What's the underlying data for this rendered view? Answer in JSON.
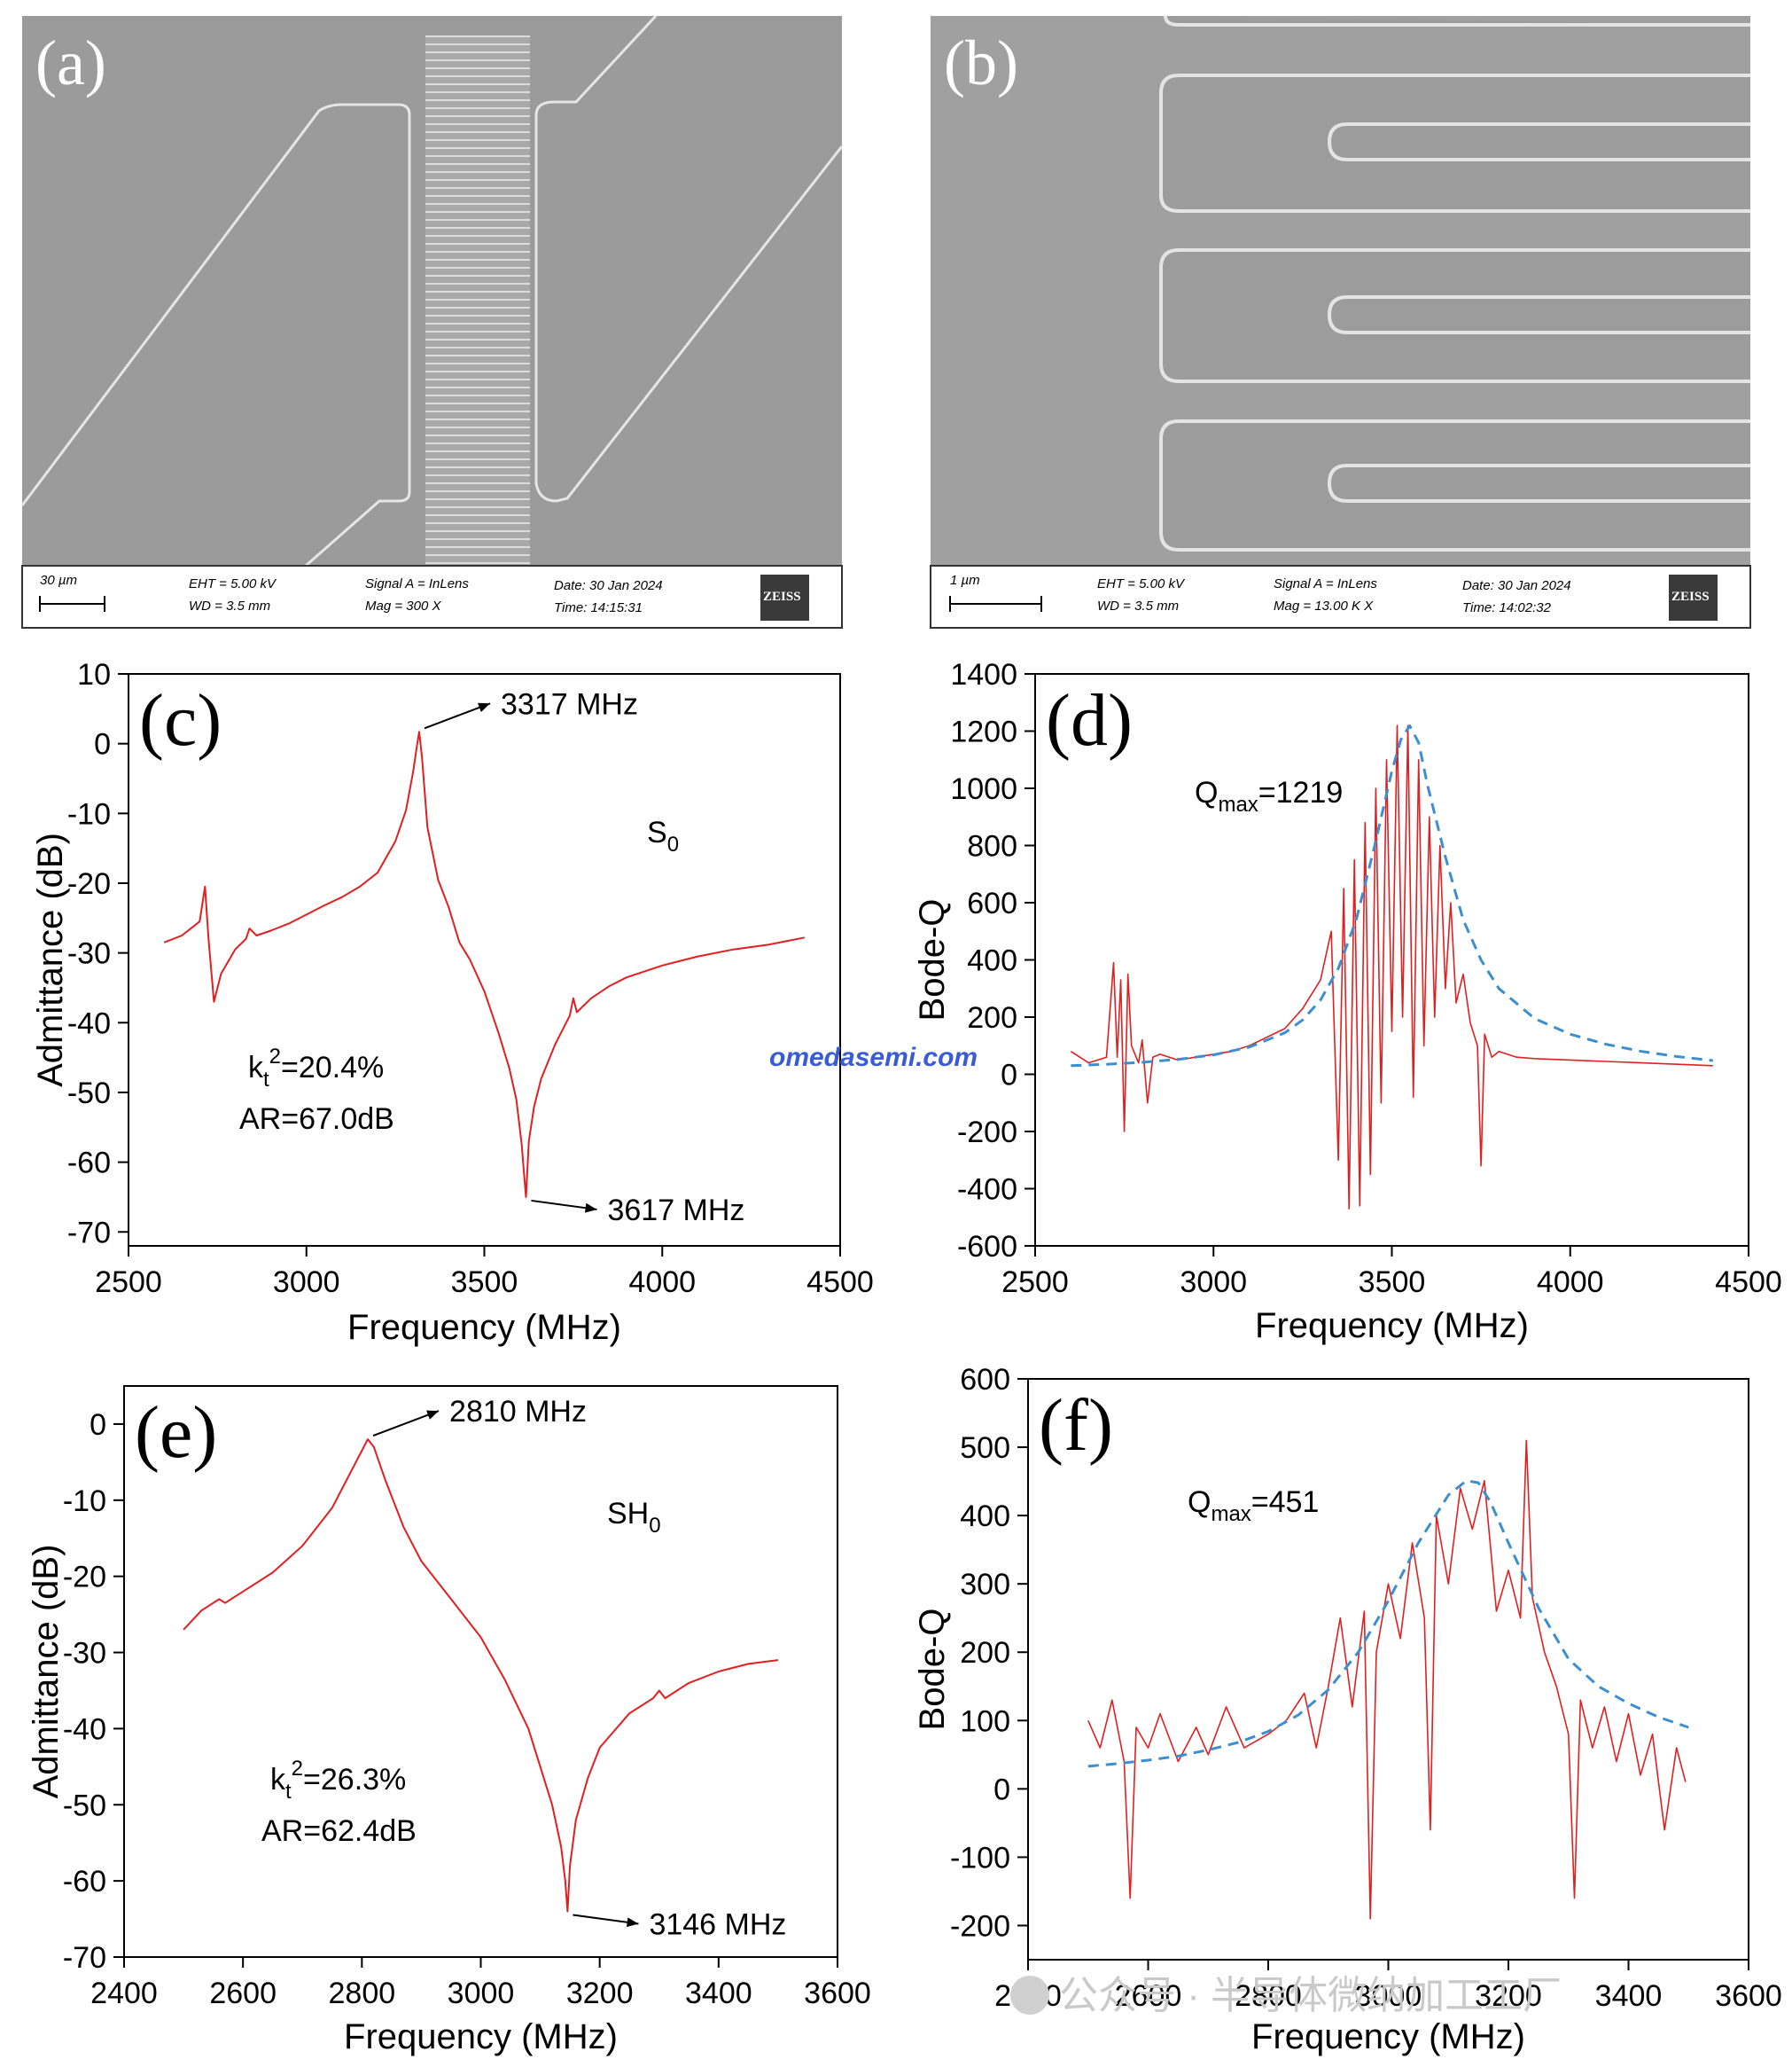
{
  "sem_panels": [
    {
      "label": "(a)",
      "info": {
        "scale": "30 µm",
        "eht": "EHT =  5.00 kV",
        "wd": "WD =  3.5 mm",
        "signal": "Signal A = InLens",
        "mag": "Mag =    300 X",
        "date": "Date: 30 Jan 2024",
        "time": "Time: 14:15:31",
        "brand": "ZEISS"
      }
    },
    {
      "label": "(b)",
      "info": {
        "scale": "1 µm",
        "eht": "EHT =  5.00 kV",
        "wd": "WD =  3.5 mm",
        "signal": "Signal A = InLens",
        "mag": "Mag =    13.00 K X",
        "date": "Date: 30 Jan 2024",
        "time": "Time: 14:02:32",
        "brand": "ZEISS"
      }
    }
  ],
  "chart_data": [
    {
      "id": "c",
      "panel_label": "(c)",
      "type": "line",
      "xlabel": "Frequency (MHz)",
      "ylabel": "Admittance (dB)",
      "xlim": [
        2500,
        4500
      ],
      "ylim": [
        -72,
        10
      ],
      "xticks": [
        2500,
        3000,
        3500,
        4000,
        4500
      ],
      "yticks": [
        10,
        0,
        -10,
        -20,
        -30,
        -40,
        -50,
        -60,
        -70
      ],
      "line_color": "#e02020",
      "x": [
        2600,
        2650,
        2700,
        2715,
        2725,
        2740,
        2760,
        2800,
        2830,
        2840,
        2860,
        2900,
        2950,
        3000,
        3050,
        3100,
        3150,
        3200,
        3250,
        3280,
        3300,
        3310,
        3317,
        3325,
        3340,
        3370,
        3400,
        3430,
        3460,
        3500,
        3540,
        3570,
        3590,
        3605,
        3612,
        3617,
        3625,
        3640,
        3660,
        3700,
        3740,
        3750,
        3760,
        3800,
        3850,
        3900,
        4000,
        4100,
        4200,
        4300,
        4400
      ],
      "y": [
        -28.5,
        -27.5,
        -25.5,
        -20.5,
        -28,
        -37,
        -33,
        -29.5,
        -28,
        -26.5,
        -27.5,
        -26.8,
        -25.8,
        -24.5,
        -23.2,
        -22.0,
        -20.5,
        -18.5,
        -14.0,
        -9.5,
        -4.0,
        -0.5,
        1.7,
        -2.0,
        -12.0,
        -19.5,
        -23.5,
        -28.5,
        -31.0,
        -35.5,
        -41.5,
        -46.5,
        -51.0,
        -57.5,
        -62.0,
        -65.0,
        -57.0,
        -52.0,
        -48.0,
        -43.0,
        -39.0,
        -36.5,
        -38.5,
        -36.5,
        -34.8,
        -33.5,
        -31.8,
        -30.5,
        -29.5,
        -28.8,
        -27.8
      ],
      "annotations": [
        {
          "text": "3317 MHz",
          "x": 3317,
          "y": 1.7
        },
        {
          "text": "3617 MHz",
          "x": 3617,
          "y": -65
        }
      ],
      "mode_label": "S",
      "mode_sub": "0",
      "kt_prefix": "k",
      "kt_sub": "t",
      "kt_sup": "2",
      "kt_value": "=20.4%",
      "ar_text": "AR=67.0dB"
    },
    {
      "id": "d",
      "panel_label": "(d)",
      "type": "line",
      "xlabel": "Frequency (MHz)",
      "ylabel": "Bode-Q",
      "xlim": [
        2500,
        4500
      ],
      "ylim": [
        -600,
        1400
      ],
      "xticks": [
        2500,
        3000,
        3500,
        4000,
        4500
      ],
      "yticks": [
        1400,
        1200,
        1000,
        800,
        600,
        400,
        200,
        0,
        -200,
        -400,
        -600
      ],
      "qmax_prefix": "Q",
      "qmax_sub": "max",
      "qmax_value": "=1219",
      "series": [
        {
          "style": "measured",
          "color": "#e02020",
          "x": [
            2600,
            2650,
            2700,
            2720,
            2730,
            2740,
            2750,
            2760,
            2770,
            2790,
            2800,
            2815,
            2830,
            2850,
            2900,
            2950,
            3000,
            3050,
            3100,
            3150,
            3200,
            3250,
            3300,
            3330,
            3350,
            3365,
            3380,
            3395,
            3410,
            3425,
            3440,
            3455,
            3470,
            3485,
            3500,
            3515,
            3530,
            3545,
            3560,
            3575,
            3590,
            3605,
            3620,
            3635,
            3650,
            3665,
            3680,
            3700,
            3720,
            3740,
            3750,
            3760,
            3780,
            3800,
            3850,
            3900,
            4000,
            4100,
            4200,
            4300,
            4400
          ],
          "y": [
            80,
            40,
            60,
            390,
            60,
            330,
            -200,
            350,
            100,
            40,
            120,
            -100,
            60,
            70,
            50,
            60,
            70,
            80,
            100,
            130,
            160,
            230,
            330,
            500,
            -300,
            650,
            -470,
            750,
            -460,
            880,
            -350,
            1000,
            -100,
            1100,
            150,
            1220,
            200,
            1219,
            -80,
            1100,
            100,
            900,
            200,
            800,
            300,
            600,
            250,
            350,
            180,
            100,
            -320,
            140,
            60,
            80,
            60,
            55,
            50,
            45,
            40,
            35,
            30
          ]
        },
        {
          "style": "fit",
          "color": "#3b8ed0",
          "x": [
            2600,
            2700,
            2800,
            2900,
            3000,
            3100,
            3200,
            3250,
            3300,
            3350,
            3400,
            3450,
            3500,
            3525,
            3550,
            3575,
            3600,
            3650,
            3700,
            3750,
            3800,
            3900,
            4000,
            4100,
            4200,
            4300,
            4400
          ],
          "y": [
            30,
            35,
            42,
            52,
            68,
            95,
            145,
            190,
            260,
            370,
            540,
            790,
            1060,
            1170,
            1219,
            1160,
            1010,
            760,
            540,
            400,
            300,
            195,
            140,
            105,
            80,
            62,
            48
          ]
        }
      ]
    },
    {
      "id": "e",
      "panel_label": "(e)",
      "type": "line",
      "xlabel": "Frequency (MHz)",
      "ylabel": "Admittance (dB)",
      "xlim": [
        2400,
        3600
      ],
      "ylim": [
        -70,
        5
      ],
      "xticks": [
        2400,
        2600,
        2800,
        3000,
        3200,
        3400,
        3600
      ],
      "yticks": [
        0,
        -10,
        -20,
        -30,
        -40,
        -50,
        -60,
        -70
      ],
      "line_color": "#e02020",
      "x": [
        2500,
        2530,
        2560,
        2570,
        2600,
        2650,
        2700,
        2750,
        2780,
        2800,
        2810,
        2820,
        2840,
        2870,
        2900,
        2950,
        3000,
        3040,
        3080,
        3100,
        3120,
        3135,
        3142,
        3146,
        3150,
        3160,
        3180,
        3200,
        3250,
        3290,
        3300,
        3310,
        3350,
        3400,
        3450,
        3500
      ],
      "y": [
        -27,
        -24.5,
        -23,
        -23.5,
        -22,
        -19.5,
        -16,
        -11,
        -6.5,
        -3.5,
        -2,
        -3,
        -7.5,
        -13.5,
        -18,
        -23,
        -28,
        -33.5,
        -40,
        -45,
        -50,
        -55.5,
        -60,
        -64,
        -58,
        -52,
        -46.5,
        -42.5,
        -38,
        -36,
        -35,
        -36,
        -34,
        -32.5,
        -31.5,
        -31
      ],
      "annotations": [
        {
          "text": "2810 MHz",
          "x": 2810,
          "y": -2
        },
        {
          "text": "3146 MHz",
          "x": 3146,
          "y": -64
        }
      ],
      "mode_label": "SH",
      "mode_sub": "0",
      "kt_prefix": "k",
      "kt_sub": "t",
      "kt_sup": "2",
      "kt_value": "=26.3%",
      "ar_text": "AR=62.4dB"
    },
    {
      "id": "f",
      "panel_label": "(f)",
      "type": "line",
      "xlabel": "Frequency (MHz)",
      "ylabel": "Bode-Q",
      "xlim": [
        2400,
        3600
      ],
      "ylim": [
        -250,
        600
      ],
      "xticks": [
        2400,
        2600,
        2800,
        3000,
        3200,
        3400,
        3600
      ],
      "yticks": [
        600,
        500,
        400,
        300,
        200,
        100,
        0,
        -100,
        -200
      ],
      "qmax_prefix": "Q",
      "qmax_sub": "max",
      "qmax_value": "=451",
      "series": [
        {
          "style": "measured",
          "color": "#e02020",
          "x": [
            2500,
            2520,
            2540,
            2560,
            2570,
            2580,
            2600,
            2620,
            2650,
            2680,
            2700,
            2730,
            2760,
            2800,
            2830,
            2860,
            2880,
            2900,
            2920,
            2940,
            2960,
            2970,
            2980,
            3000,
            3020,
            3040,
            3060,
            3070,
            3080,
            3100,
            3120,
            3140,
            3160,
            3180,
            3200,
            3220,
            3230,
            3240,
            3260,
            3280,
            3300,
            3310,
            3320,
            3340,
            3360,
            3380,
            3400,
            3420,
            3440,
            3460,
            3480,
            3495
          ],
          "y": [
            100,
            60,
            130,
            40,
            -160,
            90,
            60,
            110,
            40,
            90,
            50,
            120,
            60,
            80,
            100,
            140,
            60,
            150,
            250,
            120,
            260,
            -190,
            200,
            300,
            220,
            360,
            250,
            -60,
            400,
            300,
            440,
            380,
            451,
            260,
            320,
            250,
            510,
            280,
            200,
            150,
            80,
            -160,
            130,
            60,
            120,
            40,
            110,
            20,
            80,
            -60,
            60,
            10
          ]
        },
        {
          "style": "fit",
          "color": "#3b8ed0",
          "x": [
            2500,
            2550,
            2600,
            2650,
            2700,
            2750,
            2800,
            2850,
            2900,
            2950,
            3000,
            3050,
            3100,
            3130,
            3150,
            3170,
            3200,
            3250,
            3300,
            3350,
            3400,
            3450,
            3500
          ],
          "y": [
            33,
            37,
            42,
            48,
            57,
            68,
            84,
            108,
            145,
            200,
            275,
            360,
            430,
            451,
            448,
            420,
            360,
            265,
            190,
            150,
            125,
            105,
            90
          ]
        }
      ]
    }
  ],
  "watermarks": {
    "center": "omedasemi.com",
    "bottom": "公众号 · 半导体微纳加工工厂"
  }
}
